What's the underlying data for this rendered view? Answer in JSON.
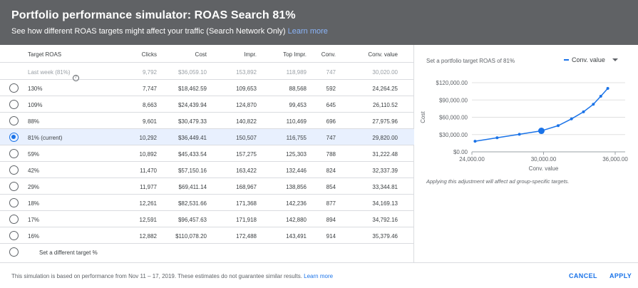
{
  "header": {
    "title": "Portfolio performance simulator: ROAS Search 81%",
    "subtitle": "See how different ROAS targets might affect your traffic (Search Network Only)",
    "learn_more": "Learn more"
  },
  "table": {
    "columns": [
      "Target ROAS",
      "Clicks",
      "Cost",
      "Impr.",
      "Top Impr.",
      "Conv.",
      "Conv. value"
    ],
    "last_week": {
      "label": "Last week (81%)",
      "clicks": "9,792",
      "cost": "$36,059.10",
      "impr": "153,892",
      "top_impr": "118,989",
      "conv": "747",
      "conv_value": "30,020.00"
    },
    "rows": [
      {
        "target": "130%",
        "clicks": "7,747",
        "cost": "$18,462.59",
        "impr": "109,653",
        "top_impr": "88,568",
        "conv": "592",
        "conv_value": "24,264.25"
      },
      {
        "target": "109%",
        "clicks": "8,663",
        "cost": "$24,439.94",
        "impr": "124,870",
        "top_impr": "99,453",
        "conv": "645",
        "conv_value": "26,110.52"
      },
      {
        "target": "88%",
        "clicks": "9,601",
        "cost": "$30,479.33",
        "impr": "140,822",
        "top_impr": "110,469",
        "conv": "696",
        "conv_value": "27,975.96"
      },
      {
        "target": "81% (current)",
        "clicks": "10,292",
        "cost": "$36,449.41",
        "impr": "150,507",
        "top_impr": "116,755",
        "conv": "747",
        "conv_value": "29,820.00"
      },
      {
        "target": "59%",
        "clicks": "10,892",
        "cost": "$45,433.54",
        "impr": "157,275",
        "top_impr": "125,303",
        "conv": "788",
        "conv_value": "31,222.48"
      },
      {
        "target": "42%",
        "clicks": "11,470",
        "cost": "$57,150.16",
        "impr": "163,422",
        "top_impr": "132,446",
        "conv": "824",
        "conv_value": "32,337.39"
      },
      {
        "target": "29%",
        "clicks": "11,977",
        "cost": "$69,411.14",
        "impr": "168,967",
        "top_impr": "138,856",
        "conv": "854",
        "conv_value": "33,344.81"
      },
      {
        "target": "18%",
        "clicks": "12,261",
        "cost": "$82,531.66",
        "impr": "171,368",
        "top_impr": "142,236",
        "conv": "877",
        "conv_value": "34,169.13"
      },
      {
        "target": "17%",
        "clicks": "12,591",
        "cost": "$96,457.63",
        "impr": "171,918",
        "top_impr": "142,880",
        "conv": "894",
        "conv_value": "34,792.16"
      },
      {
        "target": "16%",
        "clicks": "12,882",
        "cost": "$110,078.20",
        "impr": "172,488",
        "top_impr": "143,491",
        "conv": "914",
        "conv_value": "35,379.46"
      }
    ],
    "selected_index": 3,
    "custom_target_label": "Set a different target",
    "custom_target_suffix": "%"
  },
  "chart_panel": {
    "label": "Set a portfolio target ROAS of 81%",
    "dropdown_value": "Conv. value",
    "note": "Applying this adjustment will affect ad group-specific targets."
  },
  "chart_data": {
    "type": "line",
    "xlabel": "Conv. value",
    "ylabel": "Cost",
    "xlim": [
      24000,
      36000
    ],
    "ylim": [
      0,
      120000
    ],
    "x_ticks": [
      "24,000.00",
      "30,000.00",
      "36,000.00"
    ],
    "y_ticks": [
      "$0.00",
      "$30,000.00",
      "$60,000.00",
      "$90,000.00",
      "$120,000.00"
    ],
    "color": "#1a73e8",
    "current_point": {
      "x": 29820.0,
      "y": 36449.41
    },
    "series": [
      {
        "x": [
          24264.25,
          26110.52,
          27975.96,
          29820.0,
          31222.48,
          32337.39,
          33344.81,
          34169.13,
          34792.16,
          35379.46
        ],
        "y": [
          18462.59,
          24439.94,
          30479.33,
          36449.41,
          45433.54,
          57150.16,
          69411.14,
          82531.66,
          96457.63,
          110078.2
        ]
      }
    ]
  },
  "footer": {
    "text": "This simulation is based on performance from Nov 11 – 17, 2019. These estimates do not guarantee similar results.",
    "learn_more": "Learn more",
    "cancel": "CANCEL",
    "apply": "APPLY"
  }
}
